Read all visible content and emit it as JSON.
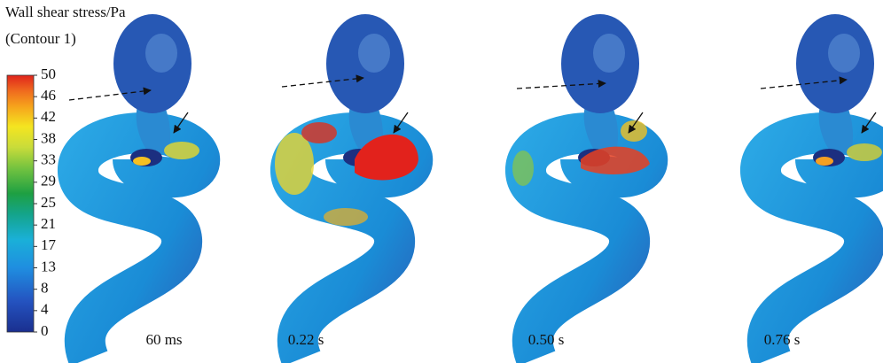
{
  "legend": {
    "title": "Wall shear stress/Pa",
    "subtitle": "(Contour 1)",
    "ticks": [
      "50",
      "46",
      "42",
      "38",
      "33",
      "29",
      "25",
      "21",
      "17",
      "13",
      "8",
      "4",
      "0"
    ]
  },
  "panels": [
    {
      "label": "60 ms"
    },
    {
      "label": "0.22 s"
    },
    {
      "label": "0.50 s"
    },
    {
      "label": "0.76 s"
    }
  ]
}
